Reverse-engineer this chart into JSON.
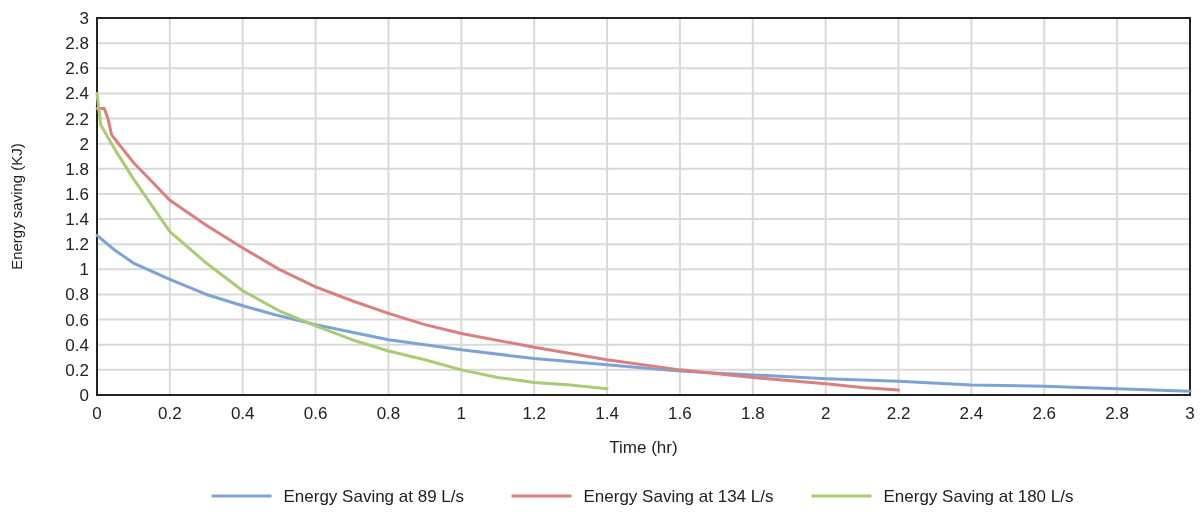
{
  "chart_data": {
    "type": "line",
    "xlabel": "Time (hr)",
    "ylabel": "Energy saving (KJ)",
    "xlim": [
      0,
      3
    ],
    "ylim": [
      0,
      3
    ],
    "xticks": [
      0,
      0.2,
      0.4,
      0.6,
      0.8,
      1,
      1.2,
      1.4,
      1.6,
      1.8,
      2,
      2.2,
      2.4,
      2.6,
      2.8,
      3
    ],
    "yticks": [
      0,
      0.2,
      0.4,
      0.6,
      0.8,
      1,
      1.2,
      1.4,
      1.6,
      1.8,
      2,
      2.2,
      2.4,
      2.6,
      2.8,
      3
    ],
    "grid": true,
    "legend": "bottom",
    "marker": "none",
    "line_style": "solid",
    "series": [
      {
        "name": "Energy Saving at 89 L/s",
        "color": "#7ca3d6",
        "x": [
          0,
          0.05,
          0.1,
          0.2,
          0.3,
          0.4,
          0.5,
          0.6,
          0.7,
          0.8,
          0.9,
          1,
          1.2,
          1.4,
          1.6,
          1.8,
          2,
          2.2,
          2.4,
          2.6,
          2.8,
          3
        ],
        "values": [
          1.27,
          1.15,
          1.05,
          0.92,
          0.8,
          0.71,
          0.63,
          0.56,
          0.5,
          0.44,
          0.4,
          0.36,
          0.29,
          0.24,
          0.19,
          0.16,
          0.13,
          0.11,
          0.08,
          0.07,
          0.05,
          0.03
        ]
      },
      {
        "name": "Energy Saving at 134 L/s",
        "color": "#d9807e",
        "x": [
          0,
          0.02,
          0.03,
          0.04,
          0.1,
          0.2,
          0.3,
          0.4,
          0.5,
          0.6,
          0.7,
          0.8,
          0.9,
          1,
          1.2,
          1.4,
          1.6,
          1.8,
          2,
          2.1,
          2.2
        ],
        "values": [
          2.28,
          2.28,
          2.2,
          2.07,
          1.85,
          1.55,
          1.35,
          1.17,
          1,
          0.86,
          0.75,
          0.65,
          0.56,
          0.49,
          0.38,
          0.28,
          0.2,
          0.14,
          0.09,
          0.06,
          0.04
        ]
      },
      {
        "name": "Energy Saving at 180 L/s",
        "color": "#a9cc72",
        "x": [
          0,
          0.01,
          0.05,
          0.1,
          0.2,
          0.3,
          0.4,
          0.5,
          0.6,
          0.7,
          0.8,
          0.9,
          1,
          1.1,
          1.2,
          1.3,
          1.4
        ],
        "values": [
          2.4,
          2.15,
          1.95,
          1.72,
          1.3,
          1.05,
          0.83,
          0.67,
          0.55,
          0.44,
          0.35,
          0.28,
          0.2,
          0.14,
          0.1,
          0.08,
          0.05
        ]
      }
    ]
  }
}
